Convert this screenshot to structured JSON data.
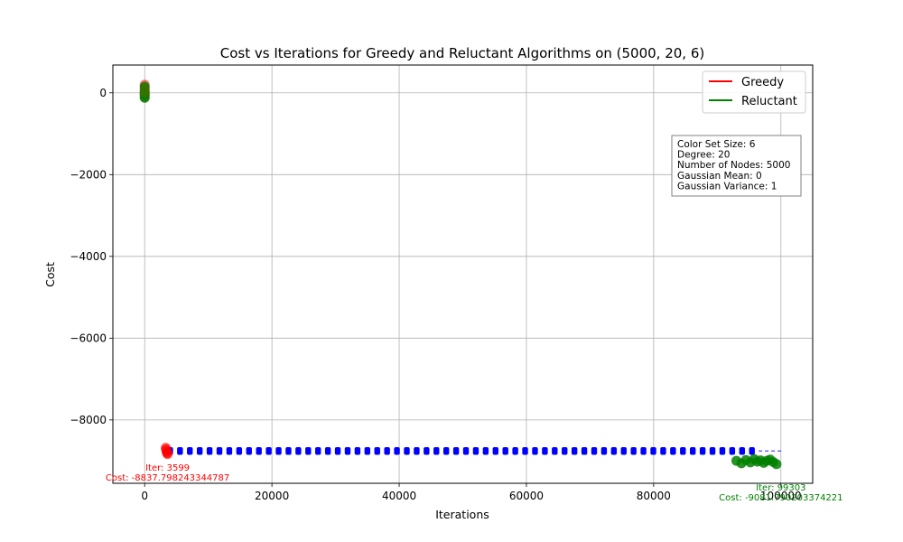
{
  "chart_data": {
    "type": "scatter",
    "title": "Cost vs Iterations for Greedy and Reluctant Algorithms on (5000, 20, 6)",
    "xlabel": "Iterations",
    "ylabel": "Cost",
    "xlim": [
      -5000,
      105000
    ],
    "ylim": [
      -9550,
      680
    ],
    "xticks": [
      0,
      20000,
      40000,
      60000,
      80000,
      100000
    ],
    "yticks": [
      0,
      -2000,
      -4000,
      -6000,
      -8000
    ],
    "grid": true,
    "legend_position": "top-right",
    "legend": [
      {
        "name": "Greedy",
        "color": "#ff0000"
      },
      {
        "name": "Reluctant",
        "color": "#008000"
      }
    ],
    "info_box": [
      "Color Set Size: 6",
      "Degree: 20",
      "Number of Nodes: 5000",
      "Gaussian Mean: 0",
      "Gaussian Variance: 1"
    ],
    "series": [
      {
        "name": "Greedy",
        "color": "#ff0000",
        "x": [
          0,
          0,
          0,
          0,
          0,
          3300,
          3350,
          3400,
          3450,
          3500,
          3550,
          3599
        ],
        "y": [
          200,
          100,
          0,
          -50,
          -100,
          -8680,
          -8710,
          -8740,
          -8770,
          -8800,
          -8820,
          -8837.8
        ]
      },
      {
        "name": "Reluctant",
        "color": "#008000",
        "x": [
          0,
          0,
          0,
          0,
          0,
          93000,
          93800,
          94500,
          95200,
          95800,
          96300,
          96800,
          97300,
          97800,
          98300,
          98800,
          99303
        ],
        "y": [
          150,
          50,
          0,
          -50,
          -120,
          -9000,
          -9060,
          -8980,
          -9040,
          -8960,
          -9020,
          -8990,
          -9050,
          -9000,
          -8970,
          -9030,
          -9081.8
        ]
      },
      {
        "name": "",
        "color": "#0000ff",
        "x_start": 4000,
        "x_end": 96500,
        "x_step": 1550,
        "y": -8760
      }
    ],
    "annotations": [
      {
        "lines": [
          "Iter: 3599",
          "Cost: -8837.798243344787"
        ],
        "color": "#ff0000",
        "x": 3599,
        "y": -8837.8
      },
      {
        "lines": [
          "Iter: 99303",
          "Cost: -9081.790203374221"
        ],
        "color": "#008000",
        "x": 99303,
        "y": -9081.8
      }
    ]
  }
}
